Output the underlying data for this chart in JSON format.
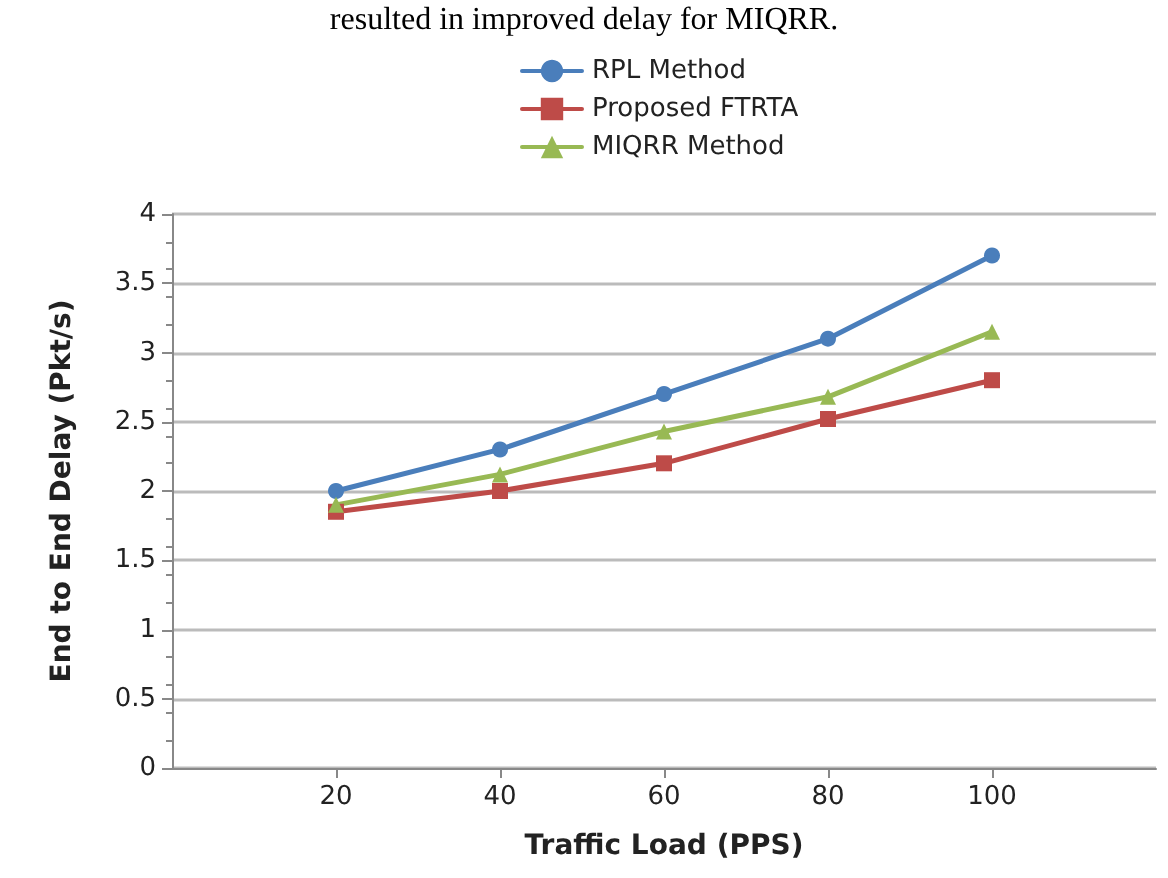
{
  "chart_data": {
    "type": "line",
    "xlabel": "Traffic Load (PPS)",
    "ylabel": "End to End Delay (Pkt/s)",
    "annotations": [
      "resulted in improved delay for MIQRR."
    ],
    "x": [
      20,
      40,
      60,
      80,
      100
    ],
    "xlim": [
      0,
      120
    ],
    "xticks": [
      20,
      40,
      60,
      80,
      100
    ],
    "ylim": [
      0,
      4
    ],
    "yticks": [
      0,
      0.5,
      1,
      1.5,
      2,
      2.5,
      3,
      3.5,
      4
    ],
    "grid": "y",
    "legend": "top left",
    "line_style": "solid",
    "series": [
      {
        "name": "RPL Method",
        "color": "#4a7ebb",
        "marker": "circle",
        "values": [
          2.0,
          2.3,
          2.7,
          3.1,
          3.7
        ]
      },
      {
        "name": "Proposed FTRTA",
        "color": "#be4b48",
        "marker": "square",
        "values": [
          1.85,
          2.0,
          2.2,
          2.52,
          2.8
        ]
      },
      {
        "name": "MIQRR Method",
        "color": "#98b954",
        "marker": "triangle",
        "values": [
          1.9,
          2.12,
          2.43,
          2.68,
          3.15
        ]
      }
    ]
  }
}
